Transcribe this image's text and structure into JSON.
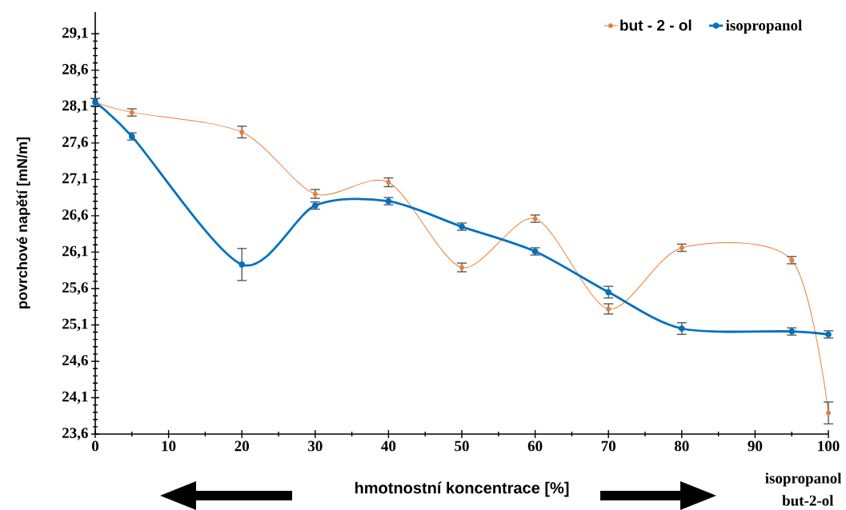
{
  "chart_data": {
    "type": "line",
    "x": [
      0,
      5,
      20,
      30,
      40,
      50,
      60,
      70,
      80,
      95,
      100
    ],
    "series": [
      {
        "name": "but - 2 - ol",
        "color": "#ed7d31",
        "values": [
          28.16,
          28.02,
          27.75,
          26.9,
          27.06,
          25.89,
          26.56,
          25.32,
          26.16,
          25.99,
          23.89
        ],
        "errors": [
          0.05,
          0.05,
          0.08,
          0.06,
          0.06,
          0.06,
          0.05,
          0.07,
          0.05,
          0.05,
          0.15
        ]
      },
      {
        "name": "isopropanol",
        "color": "#0070c0",
        "values": [
          28.16,
          27.69,
          25.93,
          26.74,
          26.8,
          26.45,
          26.11,
          25.55,
          25.05,
          25.01,
          24.97
        ],
        "errors": [
          0.05,
          0.05,
          0.22,
          0.05,
          0.05,
          0.05,
          0.05,
          0.08,
          0.08,
          0.05,
          0.05
        ]
      }
    ],
    "xlim": [
      0,
      100
    ],
    "ylim": [
      23.6,
      29.4
    ],
    "xticks": [
      0,
      10,
      20,
      30,
      40,
      50,
      60,
      70,
      80,
      90,
      100
    ],
    "yticks": [
      {
        "value": 23.6,
        "label": "23,6"
      },
      {
        "value": 24.1,
        "label": "24,1"
      },
      {
        "value": 24.6,
        "label": "24,6"
      },
      {
        "value": 25.1,
        "label": "25,1"
      },
      {
        "value": 25.6,
        "label": "25,6"
      },
      {
        "value": 26.1,
        "label": "26,1"
      },
      {
        "value": 26.6,
        "label": "26,6"
      },
      {
        "value": 27.1,
        "label": "27,1"
      },
      {
        "value": 27.6,
        "label": "27,6"
      },
      {
        "value": 28.1,
        "label": "28,1"
      },
      {
        "value": 28.6,
        "label": "28,6"
      },
      {
        "value": 29.1,
        "label": "29,1"
      }
    ],
    "xlabel": "hmotnostní koncentrace [%]",
    "ylabel": "povrchové napětí [mN/m]",
    "annotations": [
      "isopropanol",
      "but-2-ol"
    ],
    "legend": "top right",
    "grid": false,
    "marker": "circle",
    "line_style": "solid"
  }
}
